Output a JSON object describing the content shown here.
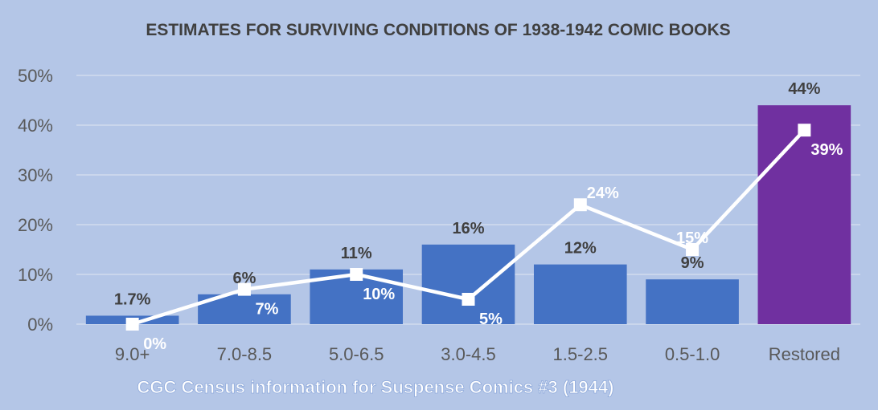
{
  "chart_data": {
    "type": "bar",
    "title": "ESTIMATES FOR SURVIVING CONDITIONS OF 1938-1942 COMIC BOOKS",
    "xlabel": "CGC Census information for Suspense Comics #3 (1944)",
    "ylabel": "",
    "ylim": [
      0,
      50
    ],
    "y_ticks": [
      "0%",
      "10%",
      "20%",
      "30%",
      "40%",
      "50%"
    ],
    "grid": true,
    "categories": [
      "9.0+",
      "7.0-8.5",
      "5.0-6.5",
      "3.0-4.5",
      "1.5-2.5",
      "0.5-1.0",
      "Restored"
    ],
    "bar_series": {
      "values": [
        1.7,
        6,
        11,
        16,
        12,
        9,
        44
      ],
      "labels": [
        "1.7%",
        "6%",
        "11%",
        "16%",
        "12%",
        "9%",
        "44%"
      ],
      "colors": [
        "#4472c4",
        "#4472c4",
        "#4472c4",
        "#4472c4",
        "#4472c4",
        "#4472c4",
        "#7030a0"
      ],
      "label_color": "#404040"
    },
    "line_series": {
      "values": [
        0,
        7,
        10,
        5,
        24,
        15,
        39
      ],
      "labels": [
        "0%",
        "7%",
        "10%",
        "5%",
        "24%",
        "15%",
        "39%"
      ],
      "color": "#ffffff",
      "marker": "square"
    },
    "colors": {
      "background": "#b4c6e7",
      "gridline": "#d6dff0",
      "axis_text": "#595959",
      "title": "#404040",
      "subtitle_fill": "#ffffff",
      "subtitle_stroke": "#8ea9db"
    }
  }
}
